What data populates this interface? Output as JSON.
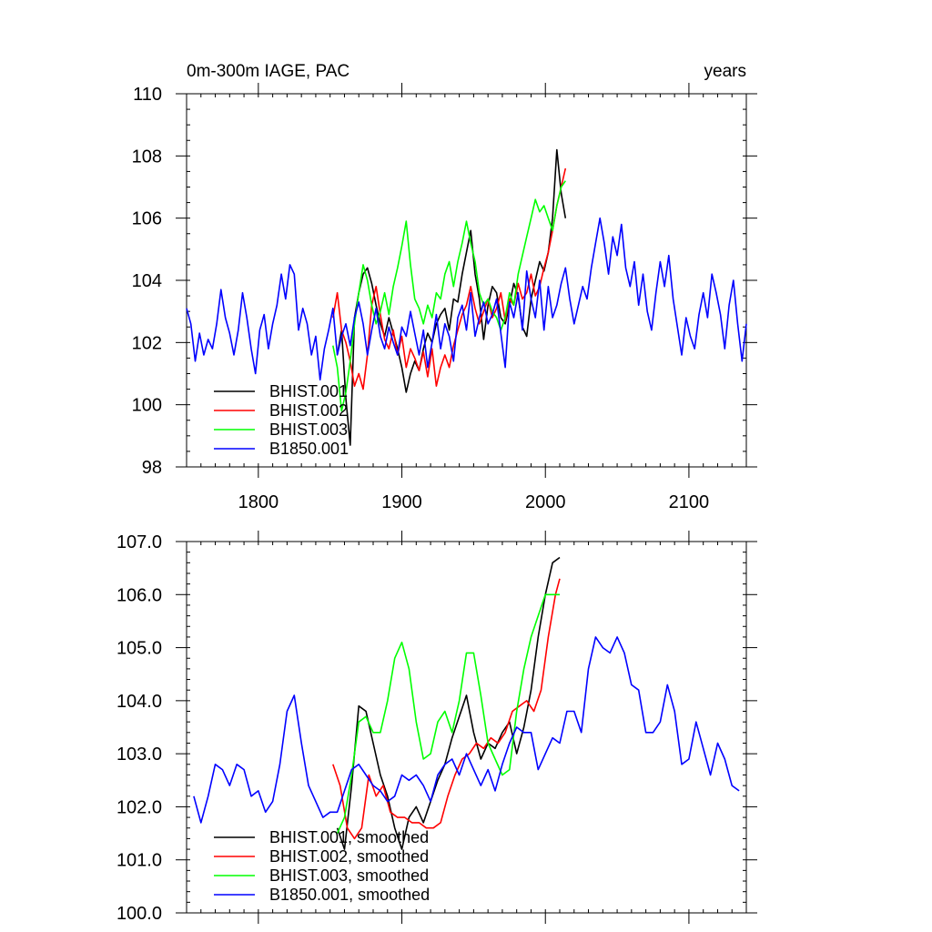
{
  "figure": {
    "title_left": "0m-300m IAGE, PAC",
    "title_right": "years"
  },
  "chart_data": [
    {
      "type": "line",
      "panel": "top",
      "title": "0m-300m IAGE, PAC",
      "units": "years",
      "xlim": [
        1750,
        2140
      ],
      "ylim": [
        98,
        110
      ],
      "xticks": [
        1800,
        1900,
        2000,
        2100
      ],
      "xtick_labels": [
        "1800",
        "1900",
        "2000",
        "2100"
      ],
      "yticks": [
        98,
        100,
        102,
        104,
        106,
        108,
        110
      ],
      "ytick_labels": [
        "98",
        "100",
        "102",
        "104",
        "106",
        "108",
        "110"
      ],
      "legend_position": "bottom-left",
      "series": [
        {
          "name": "BHIST.001",
          "color": "#000000",
          "x": [
            1855,
            1858,
            1861,
            1864,
            1867,
            1870,
            1873,
            1876,
            1879,
            1882,
            1885,
            1888,
            1891,
            1894,
            1897,
            1900,
            1903,
            1906,
            1909,
            1912,
            1915,
            1918,
            1921,
            1924,
            1927,
            1930,
            1933,
            1936,
            1939,
            1942,
            1945,
            1948,
            1951,
            1954,
            1957,
            1960,
            1963,
            1966,
            1969,
            1972,
            1975,
            1978,
            1981,
            1984,
            1987,
            1990,
            1993,
            1996,
            1999,
            2002,
            2005,
            2008,
            2011,
            2014
          ],
          "values": [
            101.6,
            102.4,
            100.2,
            98.7,
            102.8,
            103.6,
            104.2,
            104.4,
            103.9,
            103.2,
            102.6,
            102.2,
            102.8,
            102.3,
            101.8,
            101.2,
            100.4,
            101.0,
            101.4,
            101.1,
            101.8,
            102.3,
            102.0,
            102.6,
            102.9,
            103.1,
            102.4,
            103.4,
            103.3,
            104.2,
            104.9,
            105.6,
            104.2,
            103.4,
            102.1,
            103.2,
            103.8,
            103.6,
            102.8,
            102.6,
            103.2,
            103.9,
            103.5,
            102.5,
            102.2,
            103.4,
            104.0,
            104.6,
            104.3,
            104.9,
            106.0,
            108.2,
            106.8,
            106.0
          ]
        },
        {
          "name": "BHIST.002",
          "color": "#ff0000",
          "x": [
            1852,
            1855,
            1858,
            1861,
            1864,
            1867,
            1870,
            1873,
            1876,
            1879,
            1882,
            1885,
            1888,
            1891,
            1894,
            1897,
            1900,
            1903,
            1906,
            1909,
            1912,
            1915,
            1918,
            1921,
            1924,
            1927,
            1930,
            1933,
            1936,
            1939,
            1942,
            1945,
            1948,
            1951,
            1954,
            1957,
            1960,
            1963,
            1966,
            1969,
            1972,
            1975,
            1978,
            1981,
            1984,
            1987,
            1990,
            1993,
            1996,
            1999,
            2002,
            2005,
            2008,
            2011,
            2014
          ],
          "values": [
            102.8,
            103.6,
            102.4,
            102.0,
            101.4,
            100.6,
            101.0,
            100.5,
            101.6,
            103.2,
            103.8,
            102.9,
            102.1,
            101.8,
            102.4,
            101.6,
            102.2,
            101.2,
            101.8,
            101.5,
            101.1,
            101.7,
            100.9,
            101.8,
            100.6,
            101.2,
            101.6,
            101.2,
            101.9,
            102.4,
            102.9,
            103.2,
            103.8,
            103.1,
            102.6,
            103.0,
            103.4,
            102.8,
            103.1,
            103.6,
            102.7,
            103.4,
            103.2,
            103.9,
            103.4,
            103.6,
            104.2,
            103.5,
            103.8,
            104.4,
            104.9,
            105.6,
            106.4,
            107.0,
            107.6
          ]
        },
        {
          "name": "BHIST.003",
          "color": "#00ff00",
          "x": [
            1852,
            1855,
            1858,
            1861,
            1864,
            1867,
            1870,
            1873,
            1876,
            1879,
            1882,
            1885,
            1888,
            1891,
            1894,
            1897,
            1900,
            1903,
            1906,
            1909,
            1912,
            1915,
            1918,
            1921,
            1924,
            1927,
            1930,
            1933,
            1936,
            1939,
            1942,
            1945,
            1948,
            1951,
            1954,
            1957,
            1960,
            1963,
            1966,
            1969,
            1972,
            1975,
            1978,
            1981,
            1984,
            1987,
            1990,
            1993,
            1996,
            1999,
            2002,
            2005,
            2008,
            2011,
            2014
          ],
          "values": [
            101.9,
            101.2,
            99.8,
            100.4,
            101.4,
            102.6,
            103.6,
            104.5,
            104.0,
            103.2,
            102.6,
            103.0,
            103.6,
            102.9,
            103.8,
            104.4,
            105.1,
            105.9,
            104.5,
            103.4,
            103.1,
            102.6,
            103.2,
            102.8,
            103.6,
            103.4,
            104.2,
            104.6,
            103.8,
            104.6,
            105.2,
            105.9,
            105.2,
            104.6,
            103.6,
            103.2,
            103.4,
            103.0,
            102.8,
            102.4,
            102.8,
            103.6,
            103.2,
            104.2,
            104.8,
            105.4,
            106.0,
            106.6,
            106.2,
            106.4,
            106.0,
            105.6,
            106.4,
            107.0,
            107.2
          ]
        },
        {
          "name": "B1850.001",
          "color": "#0000ff",
          "x": [
            1750,
            1753,
            1756,
            1759,
            1762,
            1765,
            1768,
            1771,
            1774,
            1777,
            1780,
            1783,
            1786,
            1789,
            1792,
            1795,
            1798,
            1801,
            1804,
            1807,
            1810,
            1813,
            1816,
            1819,
            1822,
            1825,
            1828,
            1831,
            1834,
            1837,
            1840,
            1843,
            1846,
            1849,
            1852,
            1855,
            1858,
            1861,
            1864,
            1867,
            1870,
            1873,
            1876,
            1879,
            1882,
            1885,
            1888,
            1891,
            1894,
            1897,
            1900,
            1903,
            1906,
            1909,
            1912,
            1915,
            1918,
            1921,
            1924,
            1927,
            1930,
            1933,
            1936,
            1939,
            1942,
            1945,
            1948,
            1951,
            1954,
            1957,
            1960,
            1963,
            1966,
            1969,
            1972,
            1975,
            1978,
            1981,
            1984,
            1987,
            1990,
            1993,
            1996,
            1999,
            2002,
            2005,
            2008,
            2011,
            2014,
            2017,
            2020,
            2023,
            2026,
            2029,
            2032,
            2035,
            2038,
            2041,
            2044,
            2047,
            2050,
            2053,
            2056,
            2059,
            2062,
            2065,
            2068,
            2071,
            2074,
            2077,
            2080,
            2083,
            2086,
            2089,
            2092,
            2095,
            2098,
            2101,
            2104,
            2107,
            2110,
            2113,
            2116,
            2119,
            2122,
            2125,
            2128,
            2131,
            2134,
            2137,
            2140
          ],
          "values": [
            103.1,
            102.6,
            101.4,
            102.3,
            101.6,
            102.1,
            101.8,
            102.6,
            103.7,
            102.8,
            102.3,
            101.6,
            102.4,
            103.6,
            102.8,
            101.8,
            101.0,
            102.4,
            102.9,
            101.8,
            102.6,
            103.2,
            104.2,
            103.4,
            104.5,
            104.2,
            102.4,
            103.1,
            102.6,
            101.6,
            102.2,
            100.8,
            101.8,
            102.4,
            103.1,
            101.6,
            102.2,
            102.6,
            101.9,
            102.8,
            103.3,
            102.6,
            101.6,
            102.4,
            103.1,
            102.2,
            101.8,
            102.5,
            102.0,
            101.6,
            102.5,
            102.2,
            103.0,
            102.3,
            101.6,
            102.4,
            101.2,
            102.0,
            102.9,
            101.8,
            102.6,
            102.2,
            101.4,
            102.8,
            103.2,
            102.4,
            103.6,
            102.2,
            102.8,
            103.3,
            102.6,
            102.9,
            103.4,
            102.3,
            101.2,
            103.3,
            102.8,
            103.6,
            102.4,
            104.3,
            103.4,
            102.8,
            104.0,
            102.4,
            103.8,
            102.8,
            103.2,
            103.9,
            104.4,
            103.4,
            102.6,
            103.2,
            103.8,
            103.4,
            104.4,
            105.2,
            106.0,
            105.2,
            104.2,
            105.4,
            104.8,
            105.8,
            104.4,
            103.8,
            104.6,
            103.2,
            104.2,
            103.0,
            102.4,
            103.6,
            104.6,
            103.8,
            104.8,
            103.4,
            102.5,
            101.6,
            102.8,
            102.2,
            101.8,
            102.9,
            103.6,
            102.8,
            104.2,
            103.6,
            102.9,
            101.8,
            103.2,
            104.0,
            102.6,
            101.4,
            102.6
          ]
        }
      ]
    },
    {
      "type": "line",
      "panel": "bottom",
      "title": "",
      "xlim": [
        1750,
        2140
      ],
      "ylim": [
        100.0,
        107.0
      ],
      "xticks": [
        1800,
        1900,
        2000,
        2100
      ],
      "yticks": [
        100,
        101,
        102,
        103,
        104,
        105,
        106,
        107
      ],
      "ytick_labels": [
        "100.0",
        "101.0",
        "102.0",
        "103.0",
        "104.0",
        "105.0",
        "106.0",
        "107.0"
      ],
      "legend_position": "bottom-left",
      "series": [
        {
          "name": "BHIST.001, smoothed",
          "color": "#000000",
          "x": [
            1855,
            1860,
            1865,
            1870,
            1875,
            1880,
            1885,
            1890,
            1895,
            1900,
            1905,
            1910,
            1915,
            1920,
            1925,
            1930,
            1935,
            1940,
            1945,
            1950,
            1955,
            1960,
            1965,
            1970,
            1975,
            1980,
            1985,
            1990,
            1995,
            2000,
            2005,
            2010
          ],
          "values": [
            101.6,
            101.2,
            102.4,
            103.9,
            103.8,
            103.2,
            102.6,
            102.2,
            101.6,
            101.2,
            101.8,
            102.0,
            101.7,
            102.1,
            102.5,
            102.8,
            103.3,
            103.7,
            104.1,
            103.4,
            102.9,
            103.2,
            103.1,
            103.4,
            103.6,
            103.0,
            103.5,
            104.2,
            105.2,
            106.0,
            106.6,
            106.7
          ]
        },
        {
          "name": "BHIST.002, smoothed",
          "color": "#ff0000",
          "x": [
            1852,
            1857,
            1862,
            1867,
            1872,
            1877,
            1882,
            1887,
            1892,
            1897,
            1902,
            1907,
            1912,
            1917,
            1922,
            1927,
            1932,
            1937,
            1942,
            1947,
            1952,
            1957,
            1962,
            1967,
            1972,
            1977,
            1982,
            1987,
            1992,
            1997,
            2002,
            2007,
            2010
          ],
          "values": [
            102.8,
            102.4,
            101.6,
            101.4,
            101.6,
            102.6,
            102.2,
            102.4,
            101.9,
            101.8,
            101.8,
            101.7,
            101.7,
            101.6,
            101.6,
            101.7,
            102.2,
            102.6,
            102.9,
            103.0,
            103.2,
            103.1,
            103.3,
            103.2,
            103.4,
            103.8,
            103.9,
            104.0,
            103.8,
            104.2,
            105.2,
            106.0,
            106.3
          ]
        },
        {
          "name": "BHIST.003, smoothed",
          "color": "#00ff00",
          "x": [
            1855,
            1860,
            1865,
            1870,
            1875,
            1880,
            1885,
            1890,
            1895,
            1900,
            1905,
            1910,
            1915,
            1920,
            1925,
            1930,
            1935,
            1940,
            1945,
            1950,
            1955,
            1960,
            1965,
            1970,
            1975,
            1980,
            1985,
            1990,
            1995,
            2000,
            2005,
            2010
          ],
          "values": [
            101.5,
            101.8,
            102.6,
            103.6,
            103.7,
            103.4,
            103.4,
            104.0,
            104.8,
            105.1,
            104.6,
            103.6,
            102.9,
            103.0,
            103.6,
            103.8,
            103.4,
            104.0,
            104.9,
            104.9,
            104.1,
            103.2,
            102.9,
            102.6,
            102.7,
            103.8,
            104.6,
            105.2,
            105.6,
            106.0,
            106.0,
            106.0
          ]
        },
        {
          "name": "B1850.001, smoothed",
          "color": "#0000ff",
          "x": [
            1755,
            1760,
            1765,
            1770,
            1775,
            1780,
            1785,
            1790,
            1795,
            1800,
            1805,
            1810,
            1815,
            1820,
            1825,
            1830,
            1835,
            1840,
            1845,
            1850,
            1855,
            1860,
            1865,
            1870,
            1875,
            1880,
            1885,
            1890,
            1895,
            1900,
            1905,
            1910,
            1915,
            1920,
            1925,
            1930,
            1935,
            1940,
            1945,
            1950,
            1955,
            1960,
            1965,
            1970,
            1975,
            1980,
            1985,
            1990,
            1995,
            2000,
            2005,
            2010,
            2015,
            2020,
            2025,
            2030,
            2035,
            2040,
            2045,
            2050,
            2055,
            2060,
            2065,
            2070,
            2075,
            2080,
            2085,
            2090,
            2095,
            2100,
            2105,
            2110,
            2115,
            2120,
            2125,
            2130,
            2135
          ],
          "values": [
            102.2,
            101.7,
            102.2,
            102.8,
            102.7,
            102.4,
            102.8,
            102.7,
            102.2,
            102.3,
            101.9,
            102.1,
            102.8,
            103.8,
            104.1,
            103.2,
            102.4,
            102.1,
            101.8,
            101.9,
            101.9,
            102.3,
            102.7,
            102.8,
            102.6,
            102.4,
            102.3,
            102.1,
            102.2,
            102.6,
            102.5,
            102.6,
            102.4,
            102.1,
            102.6,
            102.8,
            102.9,
            102.6,
            103.0,
            102.7,
            102.4,
            102.7,
            102.3,
            102.8,
            103.2,
            103.5,
            103.4,
            103.4,
            102.7,
            103.0,
            103.3,
            103.2,
            103.8,
            103.8,
            103.4,
            104.6,
            105.2,
            105.0,
            104.9,
            105.2,
            104.9,
            104.3,
            104.2,
            103.4,
            103.4,
            103.6,
            104.3,
            103.8,
            102.8,
            102.9,
            103.6,
            103.1,
            102.6,
            103.2,
            102.9,
            102.4,
            102.3
          ]
        }
      ]
    }
  ]
}
